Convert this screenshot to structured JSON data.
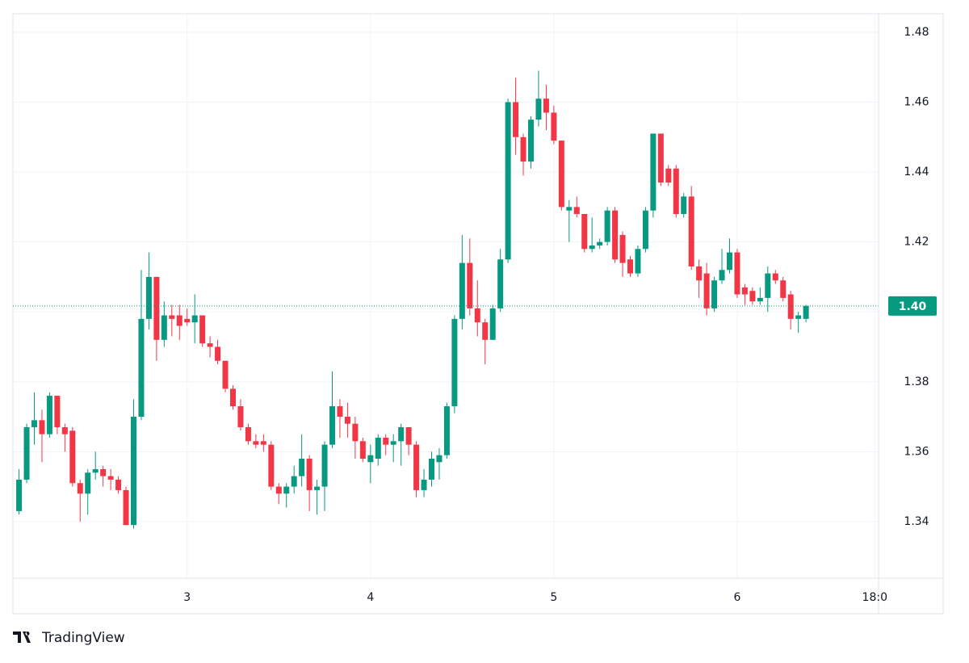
{
  "chart_data": {
    "type": "candlestick",
    "x": [
      50,
      51,
      52,
      53,
      54,
      55,
      56,
      57,
      58,
      59,
      60,
      61,
      62,
      63,
      64,
      65,
      66,
      67,
      68,
      69,
      70,
      71,
      72,
      73,
      74,
      75,
      76,
      77,
      78,
      79,
      80,
      81,
      82,
      83,
      84,
      85,
      86,
      87,
      88,
      89,
      90,
      91,
      92,
      93,
      94,
      95,
      96,
      97,
      98,
      99,
      100,
      101,
      102,
      103,
      104,
      105,
      106,
      107,
      108,
      109,
      110,
      111,
      112,
      113,
      114,
      115,
      116,
      117,
      118,
      119,
      120,
      121,
      122,
      123,
      124,
      125,
      126,
      127,
      128,
      129,
      130,
      131,
      132,
      133,
      134,
      135,
      136,
      137,
      138,
      139,
      140,
      141,
      142,
      143,
      144,
      145,
      146,
      147,
      148,
      149,
      150,
      151,
      152,
      153
    ],
    "open": [
      1.343,
      1.352,
      1.367,
      1.369,
      1.365,
      1.376,
      1.367,
      1.366,
      1.351,
      1.348,
      1.354,
      1.355,
      1.353,
      1.352,
      1.349,
      1.339,
      1.37,
      1.398,
      1.41,
      1.392,
      1.399,
      1.399,
      1.398,
      1.397,
      1.399,
      1.391,
      1.39,
      1.386,
      1.378,
      1.373,
      1.367,
      1.363,
      1.363,
      1.362,
      1.35,
      1.348,
      1.35,
      1.353,
      1.358,
      1.349,
      1.35,
      1.362,
      1.373,
      1.37,
      1.368,
      1.363,
      1.357,
      1.358,
      1.364,
      1.362,
      1.363,
      1.367,
      1.362,
      1.349,
      1.352,
      1.357,
      1.359,
      1.373,
      1.398,
      1.414,
      1.401,
      1.397,
      1.392,
      1.401,
      1.415,
      1.46,
      1.45,
      1.443,
      1.455,
      1.461,
      1.457,
      1.449,
      1.429,
      1.43,
      1.428,
      1.418,
      1.419,
      1.42,
      1.429,
      1.422,
      1.415,
      1.411,
      1.418,
      1.429,
      1.451,
      1.441,
      1.441,
      1.428,
      1.433,
      1.413,
      1.411,
      1.401,
      1.409,
      1.412,
      1.417,
      1.407,
      1.406,
      1.403,
      1.404,
      1.411,
      1.409,
      1.405,
      1.398,
      1.398
    ],
    "high": [
      1.355,
      1.368,
      1.377,
      1.372,
      1.377,
      1.376,
      1.368,
      1.367,
      1.352,
      1.355,
      1.36,
      1.356,
      1.355,
      1.353,
      1.35,
      1.375,
      1.412,
      1.417,
      1.41,
      1.403,
      1.402,
      1.402,
      1.401,
      1.405,
      1.399,
      1.393,
      1.392,
      1.386,
      1.379,
      1.375,
      1.368,
      1.365,
      1.365,
      1.363,
      1.351,
      1.351,
      1.356,
      1.365,
      1.359,
      1.352,
      1.363,
      1.383,
      1.375,
      1.374,
      1.37,
      1.364,
      1.362,
      1.365,
      1.365,
      1.365,
      1.368,
      1.367,
      1.363,
      1.355,
      1.36,
      1.361,
      1.374,
      1.399,
      1.422,
      1.421,
      1.409,
      1.398,
      1.402,
      1.418,
      1.461,
      1.467,
      1.451,
      1.456,
      1.469,
      1.465,
      1.459,
      1.449,
      1.432,
      1.433,
      1.428,
      1.427,
      1.421,
      1.43,
      1.43,
      1.423,
      1.416,
      1.419,
      1.43,
      1.451,
      1.451,
      1.442,
      1.442,
      1.434,
      1.436,
      1.415,
      1.414,
      1.41,
      1.418,
      1.421,
      1.418,
      1.408,
      1.407,
      1.407,
      1.413,
      1.412,
      1.41,
      1.406,
      1.4,
      1.402
    ],
    "low": [
      1.342,
      1.351,
      1.362,
      1.357,
      1.364,
      1.365,
      1.36,
      1.35,
      1.34,
      1.342,
      1.352,
      1.35,
      1.349,
      1.348,
      1.339,
      1.338,
      1.369,
      1.395,
      1.386,
      1.39,
      1.393,
      1.392,
      1.396,
      1.391,
      1.39,
      1.387,
      1.385,
      1.377,
      1.372,
      1.366,
      1.362,
      1.361,
      1.36,
      1.349,
      1.345,
      1.344,
      1.348,
      1.35,
      1.343,
      1.342,
      1.343,
      1.361,
      1.364,
      1.364,
      1.358,
      1.357,
      1.351,
      1.356,
      1.359,
      1.357,
      1.356,
      1.359,
      1.347,
      1.347,
      1.35,
      1.352,
      1.358,
      1.371,
      1.395,
      1.399,
      1.393,
      1.385,
      1.392,
      1.4,
      1.414,
      1.445,
      1.439,
      1.441,
      1.453,
      1.452,
      1.448,
      1.429,
      1.42,
      1.427,
      1.417,
      1.417,
      1.418,
      1.419,
      1.414,
      1.41,
      1.41,
      1.41,
      1.417,
      1.427,
      1.436,
      1.436,
      1.427,
      1.427,
      1.412,
      1.404,
      1.399,
      1.4,
      1.408,
      1.411,
      1.404,
      1.402,
      1.402,
      1.402,
      1.4,
      1.408,
      1.403,
      1.395,
      1.394,
      1.397
    ],
    "close": [
      1.352,
      1.367,
      1.369,
      1.365,
      1.376,
      1.367,
      1.365,
      1.351,
      1.348,
      1.354,
      1.355,
      1.353,
      1.352,
      1.349,
      1.339,
      1.37,
      1.398,
      1.41,
      1.392,
      1.399,
      1.398,
      1.396,
      1.397,
      1.399,
      1.391,
      1.39,
      1.386,
      1.378,
      1.373,
      1.367,
      1.363,
      1.362,
      1.362,
      1.35,
      1.348,
      1.35,
      1.353,
      1.358,
      1.349,
      1.35,
      1.362,
      1.373,
      1.37,
      1.368,
      1.363,
      1.358,
      1.359,
      1.364,
      1.362,
      1.363,
      1.367,
      1.362,
      1.349,
      1.352,
      1.358,
      1.359,
      1.373,
      1.398,
      1.414,
      1.401,
      1.397,
      1.392,
      1.401,
      1.415,
      1.46,
      1.45,
      1.443,
      1.455,
      1.461,
      1.457,
      1.449,
      1.43,
      1.43,
      1.428,
      1.418,
      1.419,
      1.42,
      1.429,
      1.415,
      1.414,
      1.411,
      1.418,
      1.429,
      1.451,
      1.437,
      1.437,
      1.428,
      1.433,
      1.413,
      1.409,
      1.401,
      1.409,
      1.412,
      1.417,
      1.405,
      1.405,
      1.403,
      1.404,
      1.411,
      1.409,
      1.404,
      1.398,
      1.399,
      1.4017
    ],
    "up_color": "#089981",
    "down_color": "#f23645",
    "xlim": [
      49.2,
      162.5
    ],
    "xticks": [
      {
        "value": 72,
        "label": "3"
      },
      {
        "value": 96,
        "label": "4"
      },
      {
        "value": 120,
        "label": "5"
      },
      {
        "value": 144,
        "label": "6"
      },
      {
        "value": 162,
        "label": "18:0"
      }
    ],
    "ylim": [
      1.3238,
      1.4853
    ],
    "yticks": [
      1.34,
      1.36,
      1.38,
      {
        "value": 1.4,
        "label": "1.40"
      },
      1.42,
      1.44,
      1.46,
      1.48
    ],
    "last_price": {
      "value": 1.4017,
      "label": "1.40"
    },
    "grid": true
  },
  "brand": "TradingView"
}
